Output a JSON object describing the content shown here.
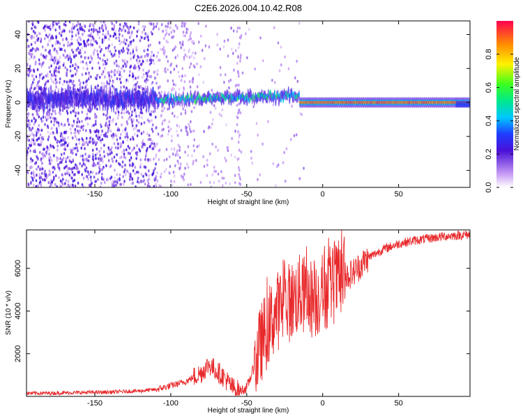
{
  "title": "C2E6.2026.004.10.42.R08",
  "colors": {
    "frame": "#000000",
    "snr_line": "#e8292b",
    "noise_low": "#c89df5",
    "noise_mid": "#8a3df0",
    "noise_high": "#4a10d8"
  },
  "chart_data": [
    {
      "type": "heatmap",
      "name": "spectrogram",
      "xlabel": "Height of straight line (km)",
      "ylabel": "Frequency (Hz)",
      "xlim": [
        -195,
        97
      ],
      "ylim": [
        -50,
        48
      ],
      "xticks": [
        -150,
        -100,
        -50,
        0,
        50
      ],
      "xtick_labels": [
        "-150",
        "-100",
        "-50",
        "0",
        "50"
      ],
      "yticks": [
        -40,
        -20,
        0,
        20,
        40
      ],
      "ytick_labels": [
        "-40",
        "-20",
        "0",
        "20",
        "40"
      ],
      "colorbar": {
        "label": "Normalized spectral amplitude",
        "range": [
          0,
          1
        ],
        "ticks": [
          0.0,
          0.2,
          0.4,
          0.6,
          0.8
        ],
        "tick_labels": [
          "0.0",
          "0.2",
          "0.4",
          "0.6",
          "0.8"
        ]
      },
      "description_points": {
        "carrier_segments": [
          {
            "x_start": -195,
            "x_end": -110,
            "freq": 2,
            "amplitude": 0.3
          },
          {
            "x_start": -110,
            "x_end": -15,
            "freq": 1.5,
            "amplitude": 0.55
          },
          {
            "x_start": -15,
            "x_end": 97,
            "freq": 0,
            "amplitude": 0.95
          }
        ]
      }
    },
    {
      "type": "line",
      "name": "snr",
      "xlabel": "Height of straight line (km)",
      "ylabel": "SNR (10 * v/v)",
      "xlim": [
        -195,
        97
      ],
      "ylim": [
        0,
        7800
      ],
      "xticks": [
        -150,
        -100,
        -50,
        0,
        50
      ],
      "xtick_labels": [
        "-150",
        "-100",
        "-50",
        "0",
        "50"
      ],
      "yticks": [
        2000,
        4000,
        6000
      ],
      "ytick_labels": [
        "2000",
        "4000",
        "6000"
      ],
      "series": [
        {
          "name": "SNR",
          "x": [
            -195,
            -180,
            -160,
            -140,
            -120,
            -110,
            -100,
            -90,
            -80,
            -75,
            -70,
            -65,
            -60,
            -55,
            -50,
            -45,
            -40,
            -35,
            -30,
            -25,
            -20,
            -15,
            -10,
            -5,
            0,
            5,
            10,
            15,
            20,
            25,
            30,
            40,
            50,
            60,
            70,
            80,
            90,
            97
          ],
          "y": [
            150,
            150,
            180,
            200,
            260,
            320,
            500,
            700,
            1100,
            1500,
            1200,
            900,
            450,
            250,
            400,
            1400,
            2600,
            3400,
            4000,
            4300,
            4500,
            4800,
            4700,
            4500,
            4900,
            5100,
            5400,
            5600,
            5800,
            6150,
            6500,
            6900,
            7150,
            7300,
            7400,
            7500,
            7550,
            7580
          ]
        }
      ]
    }
  ]
}
